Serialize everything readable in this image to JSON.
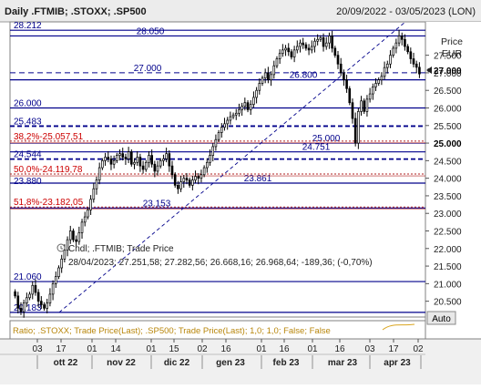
{
  "header": {
    "title": "Daily .FTMIB; .STOXX; .SP500",
    "date_range": "20/09/2022 - 03/05/2023 (LON)"
  },
  "colors": {
    "candle_up": "#ffffff",
    "candle_down": "#000000",
    "candle_outline": "#000000",
    "level_line": "#00008b",
    "level_text": "#00008b",
    "fib_line": "#b22222",
    "fib_text": "#cc0000",
    "panel_bg": "#ffffff",
    "axis_bg": "#d4d0c8",
    "bottom_panel_text": "#b8860b"
  },
  "price_axis": {
    "title_line1": "Price",
    "title_line2": "EUR",
    "tick_labels": [
      "27.500",
      "27.000",
      "26.500",
      "26.000",
      "25.500",
      "25.000",
      "24.500",
      "24.000",
      "23.500",
      "23.000",
      "22.500",
      "22.000",
      "21.500",
      "21.000",
      "20.500"
    ],
    "current_price_label": "27.000",
    "auto_button_label": "Auto"
  },
  "time_axis": {
    "day_labels": [
      "03",
      "17",
      "01",
      "14",
      "01",
      "15",
      "02",
      "16",
      "01",
      "16",
      "01",
      "16",
      "03",
      "17",
      "02"
    ],
    "month_labels": [
      "ott 22",
      "nov 22",
      "dic 22",
      "gen 23",
      "feb 23",
      "mar 23",
      "apr 23"
    ]
  },
  "level_labels": {
    "top_left": "28.212",
    "top_mid": "28.050",
    "l27000": "27.000",
    "l26800": "26.800",
    "l26000": "26.000",
    "l25483": "25.483",
    "l25000": "25.000",
    "l24751": "24.751",
    "l24544": "24.544",
    "l23861": "23.861",
    "l23153": "23.153",
    "l21060": "21.060",
    "l20183": "20.183",
    "fib382": "38,2%-25.057,51",
    "fib50": "50,0%-24.119,78",
    "fib618": "51,8%-23.182,05",
    "fib_lo_partial": "23.880"
  },
  "legend": {
    "line1": "Cndl; .FTMIB; Trade Price",
    "line2": "28/04/2023; 27.251,58; 27.282,56; 26.668,16; 26.968,64; -189,36; (-0,70%)"
  },
  "bottom_panel": {
    "text": "Ratio; .STOXX; Trade Price(Last); .SP500; Trade Price(Last); 1,0; 1,0; False; False"
  },
  "chart_data": {
    "type": "candlestick",
    "title": "Daily .FTMIB; .STOXX; .SP500",
    "ylabel": "Price EUR",
    "ylim": [
      20050,
      28450
    ],
    "x_range": [
      "2022-09-20",
      "2023-05-03"
    ],
    "last_bar": {
      "date": "28/04/2023",
      "open": 27251.58,
      "high": 27282.56,
      "low": 26668.16,
      "close": 26968.64,
      "change": -189.36,
      "change_pct": -0.7
    },
    "closes": [
      20650,
      20300,
      20200,
      20450,
      20600,
      20700,
      20950,
      20750,
      20500,
      20400,
      20300,
      20450,
      20700,
      21000,
      21200,
      21450,
      21700,
      21950,
      22250,
      22500,
      22250,
      22200,
      22450,
      22750,
      22900,
      23100,
      23400,
      23700,
      23950,
      24300,
      24500,
      24600,
      24550,
      24400,
      24500,
      24650,
      24700,
      24600,
      24550,
      24750,
      24400,
      24450,
      24600,
      24350,
      24250,
      24450,
      24650,
      24400,
      24200,
      24350,
      24500,
      24550,
      24700,
      24350,
      24100,
      23800,
      23700,
      23900,
      24000,
      23950,
      23800,
      23950,
      24050,
      24000,
      24100,
      24300,
      24450,
      24650,
      24900,
      25100,
      25300,
      25450,
      25550,
      25650,
      25750,
      25800,
      25850,
      25950,
      26050,
      26150,
      25950,
      26100,
      26300,
      26500,
      26700,
      26850,
      27000,
      26800,
      26950,
      27200,
      27400,
      27550,
      27650,
      27700,
      27600,
      27450,
      27650,
      27750,
      27850,
      27800,
      27700,
      27650,
      27750,
      27900,
      27950,
      28000,
      27750,
      27850,
      28050,
      27700,
      27500,
      27250,
      27000,
      26800,
      26550,
      26150,
      25700,
      25000,
      25900,
      26200,
      25900,
      26250,
      26400,
      26600,
      26700,
      26800,
      26900,
      27150,
      27250,
      27500,
      27700,
      27850,
      28050,
      27950,
      27750,
      27600,
      27400,
      27250,
      27158,
      26968.64
    ],
    "horizontal_levels": [
      28212,
      28050,
      27000,
      26800,
      26000,
      25483,
      25000,
      24751,
      24544,
      23861,
      23153,
      21060,
      20183
    ],
    "fib_retracements": [
      {
        "label": "38,2%",
        "value": 25057.51
      },
      {
        "label": "50,0%",
        "value": 24119.78
      },
      {
        "label": "51,8%",
        "value": 23182.05
      }
    ],
    "trendlines": [
      {
        "from": [
          "2022-10-13",
          20183
        ],
        "to": [
          "2023-04-17",
          28450
        ]
      }
    ],
    "grid": false,
    "legend_position": "top-left"
  }
}
